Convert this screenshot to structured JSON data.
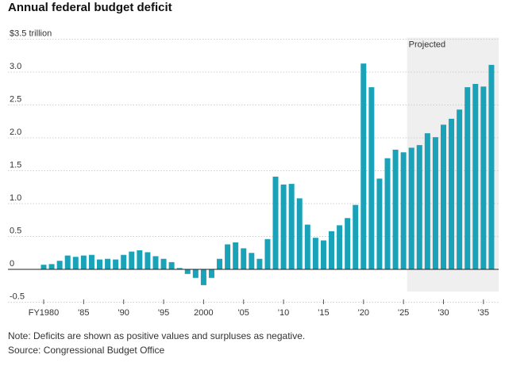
{
  "title": "Annual federal budget deficit",
  "note": "Note: Deficits are shown as positive values and surpluses as negative.",
  "source": "Source: Congressional Budget Office",
  "colors": {
    "bar": "#1aa3b8",
    "projection_band": "#efefef",
    "grid": "#cfcfcf",
    "zero_line": "#222222"
  },
  "chart_data": {
    "type": "bar",
    "title": "Annual federal budget deficit",
    "ylabel": "$3.5 trillion",
    "ylim": [
      -0.5,
      3.5
    ],
    "y_ticks": [
      {
        "value": 3.5,
        "label": "$3.5 trillion"
      },
      {
        "value": 3.0,
        "label": "3.0"
      },
      {
        "value": 2.5,
        "label": "2.5"
      },
      {
        "value": 2.0,
        "label": "2.0"
      },
      {
        "value": 1.5,
        "label": "1.5"
      },
      {
        "value": 1.0,
        "label": "1.0"
      },
      {
        "value": 0.5,
        "label": "0.5"
      },
      {
        "value": 0,
        "label": "0"
      },
      {
        "value": -0.5,
        "label": "-0.5"
      }
    ],
    "x_ticks": [
      {
        "year": 1980,
        "label": "FY1980"
      },
      {
        "year": 1985,
        "label": "'85"
      },
      {
        "year": 1990,
        "label": "'90"
      },
      {
        "year": 1995,
        "label": "'95"
      },
      {
        "year": 2000,
        "label": "2000"
      },
      {
        "year": 2005,
        "label": "'05"
      },
      {
        "year": 2010,
        "label": "'10"
      },
      {
        "year": 2015,
        "label": "'15"
      },
      {
        "year": 2020,
        "label": "'20"
      },
      {
        "year": 2025,
        "label": "'25"
      },
      {
        "year": 2030,
        "label": "'30"
      },
      {
        "year": 2035,
        "label": "'35"
      }
    ],
    "projection": {
      "start_year": 2026,
      "label": "Projected"
    },
    "grid": true,
    "x": [
      1980,
      1981,
      1982,
      1983,
      1984,
      1985,
      1986,
      1987,
      1988,
      1989,
      1990,
      1991,
      1992,
      1993,
      1994,
      1995,
      1996,
      1997,
      1998,
      1999,
      2000,
      2001,
      2002,
      2003,
      2004,
      2005,
      2006,
      2007,
      2008,
      2009,
      2010,
      2011,
      2012,
      2013,
      2014,
      2015,
      2016,
      2017,
      2018,
      2019,
      2020,
      2021,
      2022,
      2023,
      2024,
      2025,
      2026,
      2027,
      2028,
      2029,
      2030,
      2031,
      2032,
      2033,
      2034,
      2035,
      2036
    ],
    "values": [
      0.07,
      0.08,
      0.13,
      0.21,
      0.19,
      0.21,
      0.22,
      0.15,
      0.16,
      0.15,
      0.22,
      0.27,
      0.29,
      0.26,
      0.2,
      0.16,
      0.11,
      0.02,
      -0.07,
      -0.13,
      -0.24,
      -0.13,
      0.16,
      0.38,
      0.41,
      0.32,
      0.25,
      0.16,
      0.46,
      1.41,
      1.29,
      1.3,
      1.08,
      0.68,
      0.48,
      0.44,
      0.58,
      0.67,
      0.78,
      0.98,
      3.13,
      2.77,
      1.38,
      1.69,
      1.82,
      1.78,
      1.85,
      1.89,
      2.07,
      2.01,
      2.2,
      2.29,
      2.43,
      2.77,
      2.82,
      2.78,
      3.11
    ]
  }
}
